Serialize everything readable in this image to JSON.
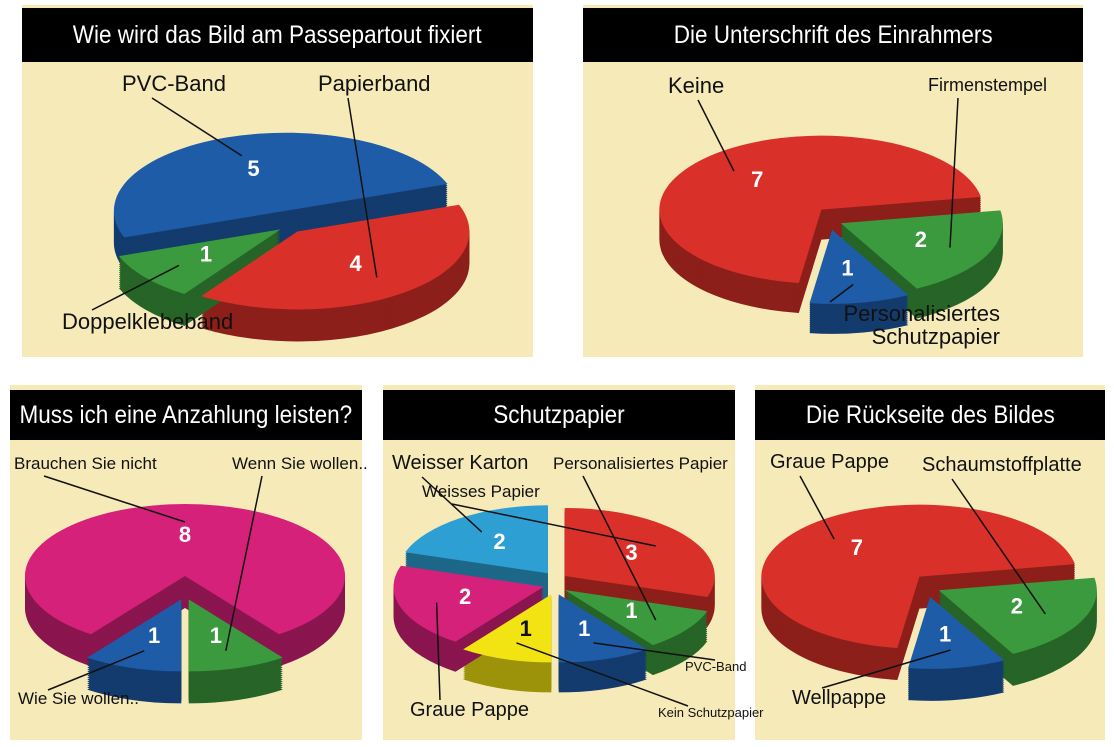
{
  "chart_data": [
    {
      "type": "pie",
      "title": "Wie wird das Bild am Passepartout fixiert",
      "categories": [
        "PVC-Band",
        "Papierband",
        "Doppelklebeband"
      ],
      "values": [
        5,
        4,
        1
      ],
      "colors": [
        "#1e5ca8",
        "#d9302a",
        "#3b9a3d"
      ]
    },
    {
      "type": "pie",
      "title": "Die Unterschrift des Einrahmers",
      "categories": [
        "Keine",
        "Firmenstempel",
        "Personalisiertes Schutzpapier"
      ],
      "values": [
        7,
        2,
        1
      ],
      "colors": [
        "#d9302a",
        "#3b9a3d",
        "#1e5ca8"
      ]
    },
    {
      "type": "pie",
      "title": "Muss ich eine Anzahlung leisten?",
      "categories": [
        "Brauchen Sie nicht",
        "Wenn Sie wollen..",
        "Wie Sie wollen.."
      ],
      "values": [
        8,
        1,
        1
      ],
      "colors": [
        "#d5217a",
        "#3b9a3d",
        "#1e5ca8"
      ]
    },
    {
      "type": "pie",
      "title": "Schutzpapier",
      "categories": [
        "Weisser Karton",
        "Weisses Papier",
        "Personalisiertes Papier",
        "PVC-Band",
        "Kein Schutzpapier",
        "Graue Pappe"
      ],
      "values": [
        2,
        3,
        1,
        1,
        1,
        2
      ],
      "colors": [
        "#2d9fd3",
        "#d9302a",
        "#3b9a3d",
        "#1e5ca8",
        "#f2e312",
        "#d5217a"
      ]
    },
    {
      "type": "pie",
      "title": "Die Rückseite des Bildes",
      "categories": [
        "Graue Pappe",
        "Schaumstoffplatte",
        "Wellpappe"
      ],
      "values": [
        7,
        2,
        1
      ],
      "colors": [
        "#d9302a",
        "#3b9a3d",
        "#1e5ca8"
      ]
    }
  ]
}
